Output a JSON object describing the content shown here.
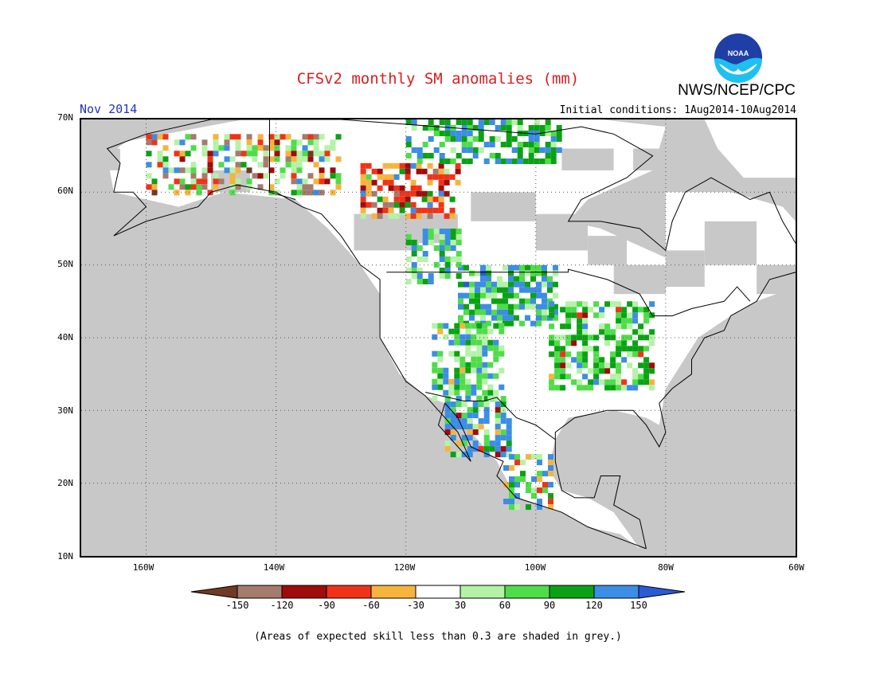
{
  "title": "CFSv2 monthly SM anomalies (mm)",
  "month": "Nov 2014",
  "initial_conditions": "Initial conditions: 1Aug2014-10Aug2014",
  "agency": "NWS/NCEP/CPC",
  "logo_text": "NOAA",
  "footnote": "(Areas of expected skill less than 0.3 are shaded in grey.)",
  "colors": {
    "title": "#d81e1e",
    "month": "#2533c0",
    "no_skill": "#c8c8c8",
    "neutral": "#ffffff"
  },
  "map": {
    "lon_range": [
      -170,
      -60
    ],
    "lat_range": [
      10,
      70
    ],
    "lat_labels": [
      "70N",
      "60N",
      "50N",
      "40N",
      "30N",
      "20N",
      "10N"
    ],
    "lon_labels": [
      "160W",
      "140W",
      "120W",
      "100W",
      "80W",
      "60W"
    ]
  },
  "colorbar": {
    "labels": [
      "-150",
      "-120",
      "-90",
      "-60",
      "-30",
      "30",
      "60",
      "90",
      "120",
      "150"
    ],
    "colors": [
      "#6e3b24",
      "#a57b6d",
      "#9e0c0c",
      "#f03318",
      "#f7b43c",
      "#ffffff",
      "#b4f2a6",
      "#4fdc4a",
      "#0aa214",
      "#3b8de6",
      "#2a5bd7"
    ]
  }
}
